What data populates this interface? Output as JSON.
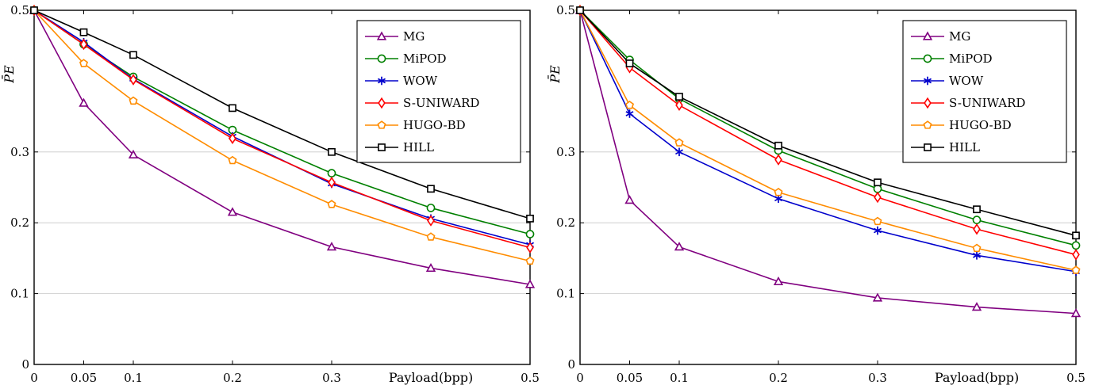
{
  "chart_data": [
    {
      "type": "line",
      "title": "",
      "xlabel": "Payload(bpp)",
      "ylabel": "P̄E",
      "x": [
        0,
        0.05,
        0.1,
        0.2,
        0.3,
        0.4,
        0.5
      ],
      "x_ticks": [
        "0",
        "0.05",
        "0.1",
        "0.2",
        "0.3",
        "0.5"
      ],
      "y_ticks": [
        "0",
        "0.1",
        "0.2",
        "0.3",
        "0.5"
      ],
      "xlim": [
        0,
        0.5
      ],
      "ylim": [
        0,
        0.5
      ],
      "grid": "horizontal",
      "legend_position": "top-right",
      "series": [
        {
          "name": "MG",
          "color": "#800080",
          "marker": "triangle",
          "values": [
            0.5,
            0.369,
            0.296,
            0.215,
            0.166,
            0.136,
            0.113
          ]
        },
        {
          "name": "MiPOD",
          "color": "#008000",
          "marker": "circle",
          "values": [
            0.5,
            0.452,
            0.406,
            0.331,
            0.27,
            0.221,
            0.184
          ]
        },
        {
          "name": "WOW",
          "color": "#0000cc",
          "marker": "asterisk",
          "values": [
            0.5,
            0.455,
            0.403,
            0.322,
            0.255,
            0.206,
            0.169
          ]
        },
        {
          "name": "S-UNIWARD",
          "color": "#ff0000",
          "marker": "diamond",
          "values": [
            0.5,
            0.452,
            0.402,
            0.319,
            0.257,
            0.203,
            0.165
          ]
        },
        {
          "name": "HUGO-BD",
          "color": "#ff8c00",
          "marker": "pentagon",
          "values": [
            0.5,
            0.425,
            0.372,
            0.288,
            0.226,
            0.18,
            0.146
          ]
        },
        {
          "name": "HILL",
          "color": "#000000",
          "marker": "square",
          "values": [
            0.5,
            0.469,
            0.437,
            0.362,
            0.3,
            0.248,
            0.206
          ]
        }
      ]
    },
    {
      "type": "line",
      "title": "",
      "xlabel": "Payload(bpp)",
      "ylabel": "P̄E",
      "x": [
        0,
        0.05,
        0.1,
        0.2,
        0.3,
        0.4,
        0.5
      ],
      "x_ticks": [
        "0",
        "0.05",
        "0.1",
        "0.2",
        "0.3",
        "0.5"
      ],
      "y_ticks": [
        "0",
        "0.1",
        "0.2",
        "0.3",
        "0.5"
      ],
      "xlim": [
        0,
        0.5
      ],
      "ylim": [
        0,
        0.5
      ],
      "grid": "horizontal",
      "legend_position": "top-right",
      "series": [
        {
          "name": "MG",
          "color": "#800080",
          "marker": "triangle",
          "values": [
            0.5,
            0.232,
            0.166,
            0.117,
            0.094,
            0.081,
            0.072
          ]
        },
        {
          "name": "MiPOD",
          "color": "#008000",
          "marker": "circle",
          "values": [
            0.5,
            0.43,
            0.375,
            0.302,
            0.248,
            0.204,
            0.168
          ]
        },
        {
          "name": "WOW",
          "color": "#0000cc",
          "marker": "asterisk",
          "values": [
            0.5,
            0.354,
            0.3,
            0.234,
            0.189,
            0.154,
            0.131
          ]
        },
        {
          "name": "S-UNIWARD",
          "color": "#ff0000",
          "marker": "diamond",
          "values": [
            0.5,
            0.419,
            0.366,
            0.289,
            0.236,
            0.191,
            0.155
          ]
        },
        {
          "name": "HUGO-BD",
          "color": "#ff8c00",
          "marker": "pentagon",
          "values": [
            0.5,
            0.366,
            0.313,
            0.243,
            0.202,
            0.164,
            0.133
          ]
        },
        {
          "name": "HILL",
          "color": "#000000",
          "marker": "square",
          "values": [
            0.5,
            0.425,
            0.378,
            0.309,
            0.257,
            0.219,
            0.182
          ]
        }
      ]
    }
  ]
}
